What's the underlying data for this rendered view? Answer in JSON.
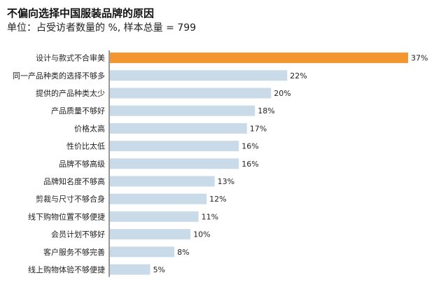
{
  "chart_data": {
    "type": "bar",
    "orientation": "horizontal",
    "title": "不偏向选择中国服装品牌的原因",
    "subtitle": "单位：占受访者数量的 %, 样本总量 = 799",
    "categories": [
      "设计与款式不合审美",
      "同一产品种类的选择不够多",
      "提供的产品种类太少",
      "产品质量不够好",
      "价格太高",
      "性价比太低",
      "品牌不够高级",
      "品牌知名度不够高",
      "剪裁与尺寸不够合身",
      "线下购物位置不够便捷",
      "会员计划不够好",
      "客户服务不够完善",
      "线上购物体验不够便捷"
    ],
    "values": [
      37,
      22,
      20,
      18,
      17,
      16,
      16,
      13,
      12,
      11,
      10,
      8,
      5
    ],
    "value_labels": [
      "37%",
      "22%",
      "20%",
      "18%",
      "17%",
      "16%",
      "16%",
      "13%",
      "12%",
      "11%",
      "10%",
      "8%",
      "5%"
    ],
    "highlight_index": 0,
    "highlight_color": "#f4962f",
    "bar_color": "#c9dbe9",
    "axis_color": "#333333",
    "xlim": [
      0,
      37
    ],
    "grid": false
  }
}
